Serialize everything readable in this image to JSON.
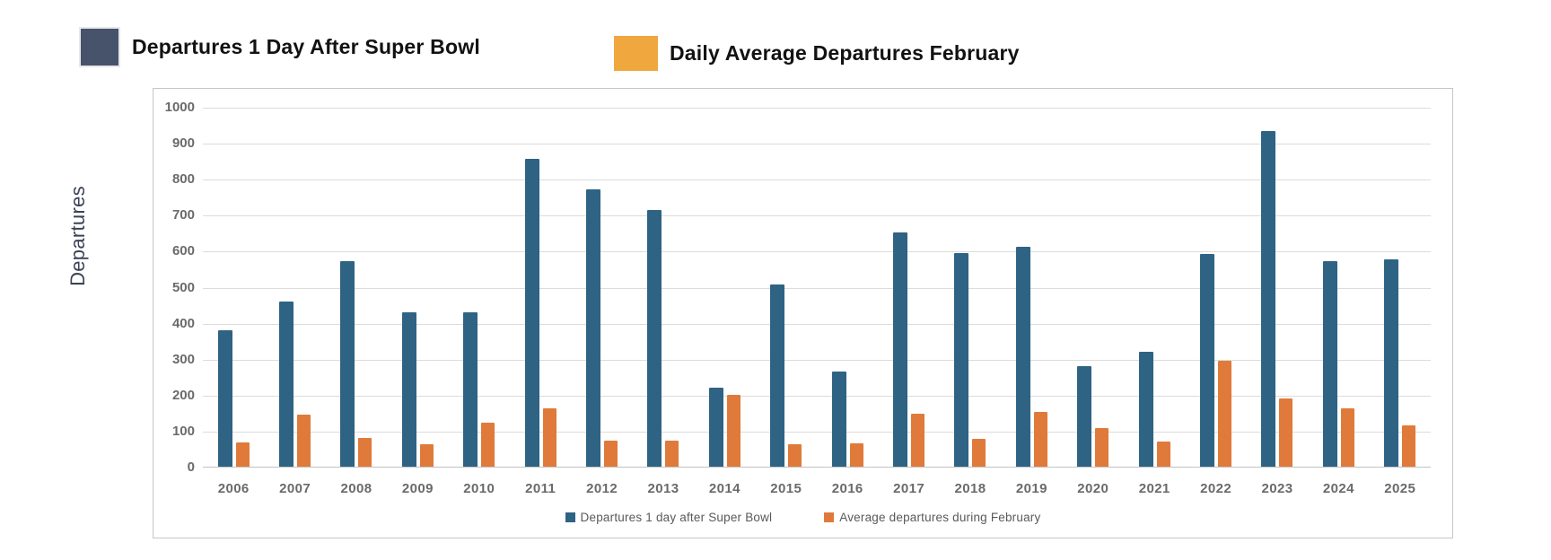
{
  "page": {
    "background_color": "#ffffff"
  },
  "top_legend": {
    "items": [
      {
        "label": "Departures 1 Day After Super Bowl",
        "color": "#46536A"
      },
      {
        "label": "Daily Average Departures February",
        "color": "#F0A73E"
      }
    ]
  },
  "chart_data": {
    "type": "bar",
    "title": "",
    "xlabel": "",
    "ylabel": "Departures",
    "ylim": [
      0,
      1000
    ],
    "ytick_step": 100,
    "grid": true,
    "legend_position": "bottom-center",
    "categories": [
      "2006",
      "2007",
      "2008",
      "2009",
      "2010",
      "2011",
      "2012",
      "2013",
      "2014",
      "2015",
      "2016",
      "2017",
      "2018",
      "2019",
      "2020",
      "2021",
      "2022",
      "2023",
      "2024",
      "2025"
    ],
    "series": [
      {
        "name": "Departures 1 day after Super Bowl",
        "color": "#2E6384",
        "values": [
          380,
          460,
          570,
          430,
          428,
          855,
          770,
          714,
          220,
          507,
          265,
          650,
          593,
          612,
          279,
          320,
          590,
          932,
          570,
          576
        ]
      },
      {
        "name": "Average departures during February",
        "color": "#E07A3A",
        "values": [
          68,
          145,
          80,
          62,
          123,
          162,
          73,
          73,
          200,
          63,
          66,
          146,
          77,
          151,
          108,
          70,
          295,
          190,
          162,
          114
        ]
      }
    ]
  }
}
